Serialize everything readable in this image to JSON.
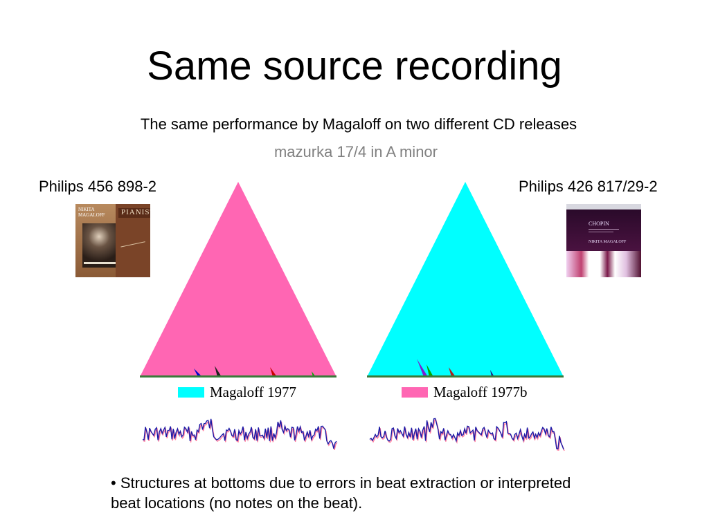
{
  "slide": {
    "title": "Same source recording",
    "subtitle": "The same performance by Magaloff on two different CD releases",
    "piece": "mazurka 17/4 in A minor",
    "left_release": {
      "label": "Philips 456 898-2",
      "cover": {
        "line1": "NIKITA",
        "line2": "MAGALOFF",
        "banner": "PIANIST"
      }
    },
    "right_release": {
      "label": "Philips 426 817/29-2",
      "cover": {
        "line1": "CHOPIN",
        "line2": "NIKITA MAGALOFF"
      }
    },
    "left_plot": {
      "legend": "Magaloff 1977",
      "triangle_color": "#ff66b3",
      "legend_color": "#00ffff"
    },
    "right_plot": {
      "legend": "Magaloff 1977b",
      "triangle_color": "#00ffff",
      "legend_color": "#ff66b3"
    },
    "bullet": "• Structures at bottoms due to errors in beat extraction or interpreted beat locations (no notes on the beat)."
  },
  "colors": {
    "trace_line": "#1a1aa6",
    "trace_shadow": "#ff7fa0",
    "piece_text": "#808080"
  }
}
